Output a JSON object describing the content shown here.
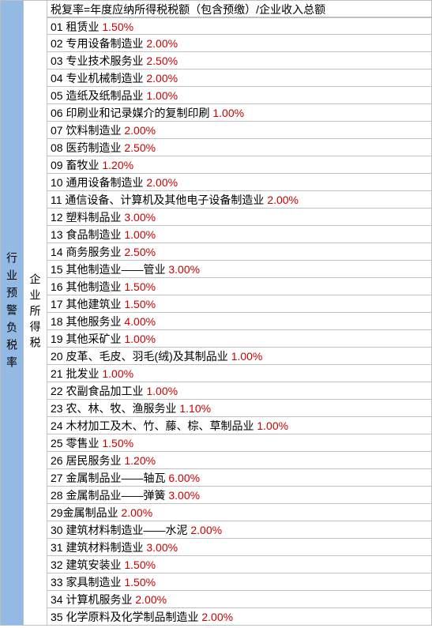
{
  "colors": {
    "left_bg": "#93b9e5",
    "border": "#c0c0c0",
    "text": "#000000",
    "rate": "#cc0000",
    "background": "#ffffff"
  },
  "left_label": "行业预警负税率",
  "mid_label": "企业所得税",
  "header_row": "税复率=年度应纳所得税税额（包含预缴）/企业收入总额",
  "rows": [
    {
      "num": "01",
      "name": "租赁业",
      "rate": "1.50%"
    },
    {
      "num": "02",
      "name": "专用设备制造业",
      "rate": "2.00%"
    },
    {
      "num": "03",
      "name": "专业技术服务业",
      "rate": "2.50%"
    },
    {
      "num": "04",
      "name": "专业机械制造业",
      "rate": "2.00%"
    },
    {
      "num": "05",
      "name": "造纸及纸制品业",
      "rate": "1.00%"
    },
    {
      "num": "06",
      "name": "印刷业和记录媒介的复制印刷",
      "rate": "1.00%"
    },
    {
      "num": "07",
      "name": "饮料制造业",
      "rate": "2.00%"
    },
    {
      "num": "08",
      "name": "医药制造业",
      "rate": "2.50%"
    },
    {
      "num": "09",
      "name": "畜牧业",
      "rate": "1.20%"
    },
    {
      "num": "10",
      "name": "通用设备制造业",
      "rate": "2.00%"
    },
    {
      "num": "11",
      "name": "通信设备、计算机及其他电子设备制造业",
      "rate": "2.00%"
    },
    {
      "num": "12",
      "name": "塑料制品业",
      "rate": "3.00%"
    },
    {
      "num": "13",
      "name": "食品制造业",
      "rate": "1.00%"
    },
    {
      "num": "14",
      "name": "商务服务业",
      "rate": "2.50%"
    },
    {
      "num": "15",
      "name": "其他制造业——管业",
      "rate": "3.00%"
    },
    {
      "num": "16",
      "name": "其他制造业",
      "rate": "1.50%"
    },
    {
      "num": "17",
      "name": "其他建筑业",
      "rate": "1.50%"
    },
    {
      "num": "18",
      "name": "其他服务业",
      "rate": "4.00%"
    },
    {
      "num": "19",
      "name": "其他采矿业",
      "rate": "1.00%"
    },
    {
      "num": "20",
      "name": "皮革、毛皮、羽毛(绒)及其制品业",
      "rate": "1.00%"
    },
    {
      "num": "21",
      "name": "批发业",
      "rate": "1.00%"
    },
    {
      "num": "22",
      "name": "农副食品加工业",
      "rate": "1.00%"
    },
    {
      "num": "23",
      "name": "农、林、牧、渔服务业",
      "rate": "1.10%"
    },
    {
      "num": "24",
      "name": "木材加工及木、竹、藤、棕、草制品业",
      "rate": "1.00%"
    },
    {
      "num": "25",
      "name": "零售业",
      "rate": "1.50%"
    },
    {
      "num": "26",
      "name": "居民服务业",
      "rate": "1.20%"
    },
    {
      "num": "27",
      "name": "金属制品业——轴瓦",
      "rate": "6.00%"
    },
    {
      "num": "28",
      "name": "金属制品业——弹簧",
      "rate": "3.00%"
    },
    {
      "num": "29",
      "name": "金属制品业",
      "rate": "2.00%"
    },
    {
      "num": "30",
      "name": "建筑材料制造业——水泥",
      "rate": "2.00%"
    },
    {
      "num": "31",
      "name": "建筑材料制造业",
      "rate": "3.00%"
    },
    {
      "num": "32",
      "name": "建筑安装业",
      "rate": "1.50%"
    },
    {
      "num": "33",
      "name": "家具制造业",
      "rate": "1.50%"
    },
    {
      "num": "34",
      "name": "计算机服务业",
      "rate": "2.00%"
    },
    {
      "num": "35",
      "name": "化学原料及化学制品制造业",
      "rate": "2.00%"
    }
  ]
}
